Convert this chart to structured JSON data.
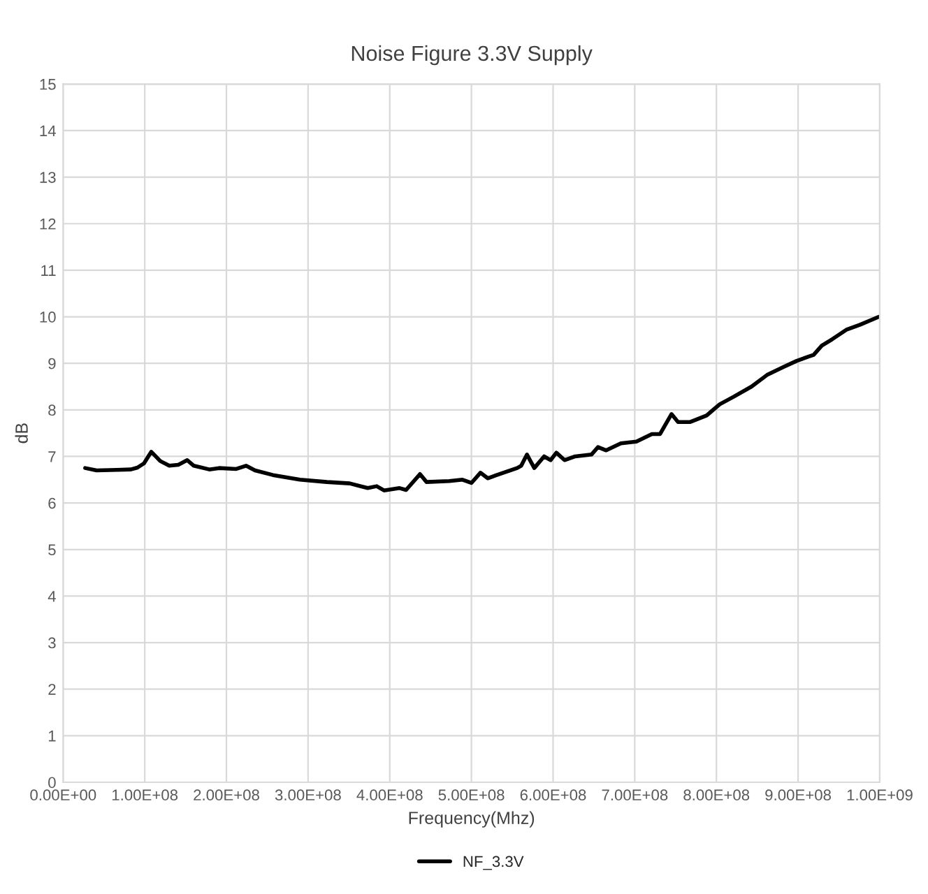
{
  "chart_data": {
    "type": "line",
    "title": "Noise Figure 3.3V Supply",
    "xlabel": "Frequency(Mhz)",
    "ylabel": "dB",
    "x": [
      27000000,
      41000000,
      66000000,
      83000000,
      91000000,
      99000000,
      108000000,
      119000000,
      130000000,
      141000000,
      152000000,
      160000000,
      179000000,
      191000000,
      212000000,
      224000000,
      235000000,
      257000000,
      290000000,
      323000000,
      351000000,
      373000000,
      384000000,
      393000000,
      412000000,
      420000000,
      437000000,
      445000000,
      473000000,
      489000000,
      500000000,
      511000000,
      520000000,
      531000000,
      556000000,
      561000000,
      568000000,
      577000000,
      589000000,
      597000000,
      604000000,
      614000000,
      627000000,
      647000000,
      655000000,
      665000000,
      683000000,
      702000000,
      721000000,
      731000000,
      745000000,
      753000000,
      768000000,
      788000000,
      804000000,
      821000000,
      843000000,
      862000000,
      882000000,
      898000000,
      912000000,
      919000000,
      929000000,
      942000000,
      959000000,
      976000000,
      999000000
    ],
    "series": [
      {
        "name": "NF_3.3V",
        "color": "#000000",
        "values": [
          6.75,
          6.7,
          6.71,
          6.72,
          6.76,
          6.85,
          7.1,
          6.9,
          6.8,
          6.82,
          6.92,
          6.8,
          6.72,
          6.75,
          6.73,
          6.8,
          6.7,
          6.6,
          6.5,
          6.45,
          6.42,
          6.32,
          6.36,
          6.27,
          6.32,
          6.28,
          6.62,
          6.45,
          6.47,
          6.5,
          6.43,
          6.65,
          6.53,
          6.6,
          6.75,
          6.8,
          7.04,
          6.75,
          7.0,
          6.92,
          7.08,
          6.92,
          7.0,
          7.04,
          7.2,
          7.13,
          7.28,
          7.32,
          7.48,
          7.48,
          7.91,
          7.74,
          7.74,
          7.88,
          8.12,
          8.28,
          8.5,
          8.75,
          8.92,
          9.05,
          9.14,
          9.18,
          9.38,
          9.52,
          9.72,
          9.83,
          10.0
        ]
      }
    ],
    "xlim": [
      0,
      1000000000
    ],
    "xticks": [
      {
        "value": 0,
        "label": "0.00E+00"
      },
      {
        "value": 100000000,
        "label": "1.00E+08"
      },
      {
        "value": 200000000,
        "label": "2.00E+08"
      },
      {
        "value": 300000000,
        "label": "3.00E+08"
      },
      {
        "value": 400000000,
        "label": "4.00E+08"
      },
      {
        "value": 500000000,
        "label": "5.00E+08"
      },
      {
        "value": 600000000,
        "label": "6.00E+08"
      },
      {
        "value": 700000000,
        "label": "7.00E+08"
      },
      {
        "value": 800000000,
        "label": "8.00E+08"
      },
      {
        "value": 900000000,
        "label": "9.00E+08"
      },
      {
        "value": 1000000000,
        "label": "1.00E+09"
      }
    ],
    "ylim": [
      0,
      15
    ],
    "yticks": [
      0,
      1,
      2,
      3,
      4,
      5,
      6,
      7,
      8,
      9,
      10,
      11,
      12,
      13,
      14,
      15
    ],
    "grid": true,
    "legend": "bottom",
    "marker": "none",
    "line_style": "solid"
  }
}
